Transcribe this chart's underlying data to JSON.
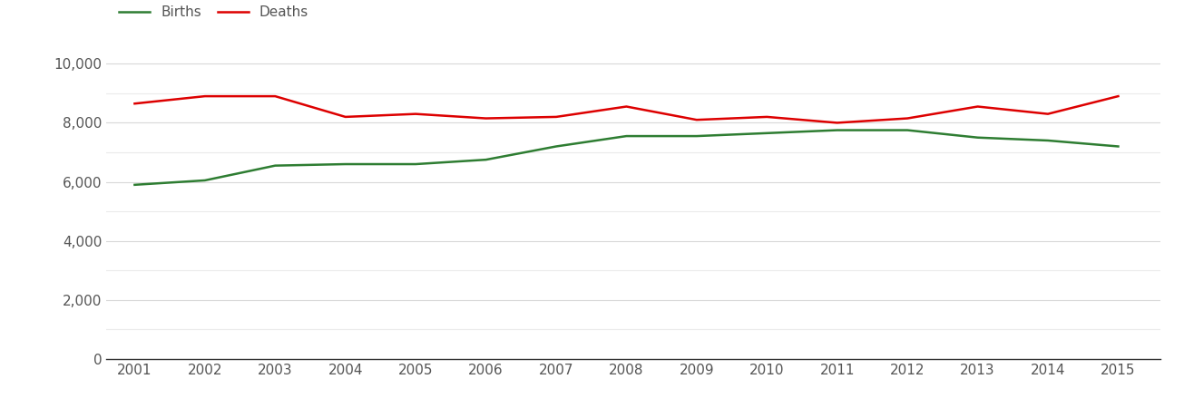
{
  "years": [
    2001,
    2002,
    2003,
    2004,
    2005,
    2006,
    2007,
    2008,
    2009,
    2010,
    2011,
    2012,
    2013,
    2014,
    2015
  ],
  "births": [
    5900,
    6050,
    6550,
    6600,
    6600,
    6750,
    7200,
    7550,
    7550,
    7650,
    7750,
    7750,
    7500,
    7400,
    7200
  ],
  "deaths": [
    8650,
    8900,
    8900,
    8200,
    8300,
    8150,
    8200,
    8550,
    8100,
    8200,
    8000,
    8150,
    8550,
    8300,
    8900
  ],
  "births_color": "#2e7d32",
  "deaths_color": "#dd0000",
  "line_width": 1.8,
  "legend_labels": [
    "Births",
    "Deaths"
  ],
  "ylim": [
    0,
    10500
  ],
  "yticks": [
    0,
    2000,
    4000,
    6000,
    8000,
    10000
  ],
  "extra_gridlines": [
    1000,
    3000,
    5000,
    7000,
    9000
  ],
  "xlim": [
    2000.6,
    2015.6
  ],
  "grid_color": "#d8d8d8",
  "extra_grid_color": "#ebebeb",
  "background_color": "#ffffff",
  "tick_fontsize": 11,
  "legend_fontsize": 11,
  "tick_color": "#555555",
  "spine_color": "#333333"
}
